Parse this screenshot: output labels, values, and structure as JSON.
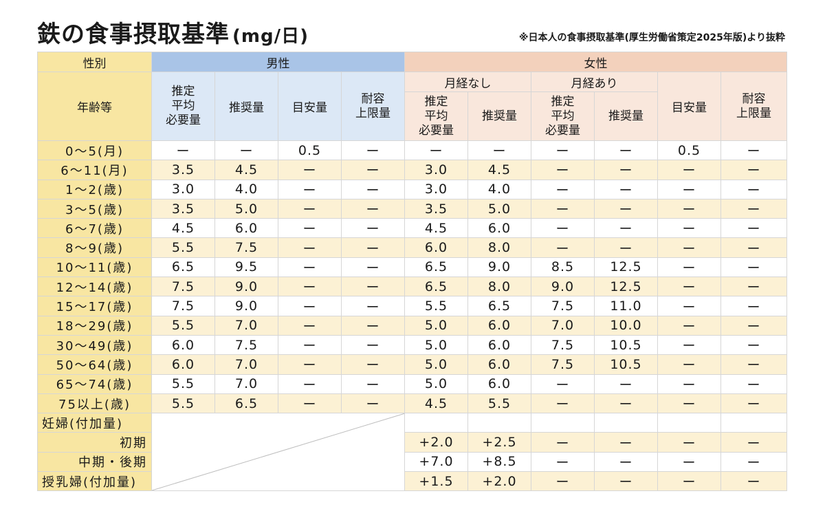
{
  "title": "鉄の食事摂取基準",
  "unit": "(mg/日)",
  "source": "※日本人の食事摂取基準(厚生労働省策定2025年版)より抜粋",
  "headers": {
    "sex": "性別",
    "age": "年齢等",
    "male": "男性",
    "female": "女性",
    "no_menstruation": "月経なし",
    "with_menstruation": "月経あり",
    "estimated_avg_requirement": "推定\n平均\n必要量",
    "recommended": "推奨量",
    "adequate": "目安量",
    "upper_limit": "耐容\n上限量"
  },
  "rows": [
    {
      "age": "0～5(月)",
      "values": [
        "ー",
        "ー",
        "0.5",
        "ー",
        "ー",
        "ー",
        "ー",
        "ー",
        "0.5",
        "ー"
      ]
    },
    {
      "age": "6～11(月)",
      "values": [
        "3.5",
        "4.5",
        "ー",
        "ー",
        "3.0",
        "4.5",
        "ー",
        "ー",
        "ー",
        "ー"
      ]
    },
    {
      "age": "1～2(歳)",
      "values": [
        "3.0",
        "4.0",
        "ー",
        "ー",
        "3.0",
        "4.0",
        "ー",
        "ー",
        "ー",
        "ー"
      ]
    },
    {
      "age": "3～5(歳)",
      "values": [
        "3.5",
        "5.0",
        "ー",
        "ー",
        "3.5",
        "5.0",
        "ー",
        "ー",
        "ー",
        "ー"
      ]
    },
    {
      "age": "6～7(歳)",
      "values": [
        "4.5",
        "6.0",
        "ー",
        "ー",
        "4.5",
        "6.0",
        "ー",
        "ー",
        "ー",
        "ー"
      ]
    },
    {
      "age": "8～9(歳)",
      "values": [
        "5.5",
        "7.5",
        "ー",
        "ー",
        "6.0",
        "8.0",
        "ー",
        "ー",
        "ー",
        "ー"
      ]
    },
    {
      "age": "10～11(歳)",
      "values": [
        "6.5",
        "9.5",
        "ー",
        "ー",
        "6.5",
        "9.0",
        "8.5",
        "12.5",
        "ー",
        "ー"
      ]
    },
    {
      "age": "12～14(歳)",
      "values": [
        "7.5",
        "9.0",
        "ー",
        "ー",
        "6.5",
        "8.0",
        "9.0",
        "12.5",
        "ー",
        "ー"
      ]
    },
    {
      "age": "15～17(歳)",
      "values": [
        "7.5",
        "9.0",
        "ー",
        "ー",
        "5.5",
        "6.5",
        "7.5",
        "11.0",
        "ー",
        "ー"
      ]
    },
    {
      "age": "18～29(歳)",
      "values": [
        "5.5",
        "7.0",
        "ー",
        "ー",
        "5.0",
        "6.0",
        "7.0",
        "10.0",
        "ー",
        "ー"
      ]
    },
    {
      "age": "30～49(歳)",
      "values": [
        "6.0",
        "7.5",
        "ー",
        "ー",
        "5.0",
        "6.0",
        "7.5",
        "10.5",
        "ー",
        "ー"
      ]
    },
    {
      "age": "50～64(歳)",
      "values": [
        "6.0",
        "7.0",
        "ー",
        "ー",
        "5.0",
        "6.0",
        "7.5",
        "10.5",
        "ー",
        "ー"
      ]
    },
    {
      "age": "65～74(歳)",
      "values": [
        "5.5",
        "7.0",
        "ー",
        "ー",
        "5.0",
        "6.0",
        "ー",
        "ー",
        "ー",
        "ー"
      ]
    },
    {
      "age": "75以上(歳)",
      "values": [
        "5.5",
        "6.5",
        "ー",
        "ー",
        "4.5",
        "5.5",
        "ー",
        "ー",
        "ー",
        "ー"
      ]
    }
  ],
  "pregnancy": {
    "label": "妊婦(付加量)",
    "early_label": "初期",
    "early_values": [
      "+2.0",
      "+2.5",
      "ー",
      "ー",
      "ー",
      "ー"
    ],
    "mid_late_label": "中期・後期",
    "mid_late_values": [
      "+7.0",
      "+8.5",
      "ー",
      "ー",
      "ー",
      "ー"
    ]
  },
  "lactation": {
    "label": "授乳婦(付加量)",
    "values": [
      "+1.5",
      "+2.0",
      "ー",
      "ー",
      "ー",
      "ー"
    ]
  }
}
